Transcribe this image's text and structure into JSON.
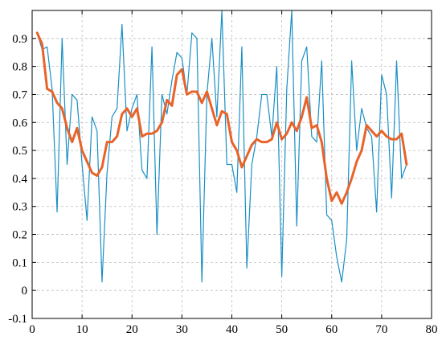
{
  "chart_data": {
    "type": "line",
    "title": "",
    "xlabel": "",
    "ylabel": "",
    "xlim": [
      0,
      80
    ],
    "ylim": [
      -0.1,
      1.0
    ],
    "grid": true,
    "legend": "none",
    "x_ticks": [
      0,
      10,
      20,
      30,
      40,
      50,
      60,
      70,
      80
    ],
    "y_ticks": [
      -0.1,
      0,
      0.1,
      0.2,
      0.3,
      0.4,
      0.5,
      0.6,
      0.7,
      0.8,
      0.9
    ],
    "x_tick_labels": [
      "0",
      "10",
      "20",
      "30",
      "40",
      "50",
      "60",
      "70",
      "80"
    ],
    "y_tick_labels": [
      "-0.1",
      "0",
      "0.1",
      "0.2",
      "0.3",
      "0.4",
      "0.5",
      "0.6",
      "0.7",
      "0.8",
      "0.9"
    ],
    "x": [
      1,
      2,
      3,
      4,
      5,
      6,
      7,
      8,
      9,
      10,
      11,
      12,
      13,
      14,
      15,
      16,
      17,
      18,
      19,
      20,
      21,
      22,
      23,
      24,
      25,
      26,
      27,
      28,
      29,
      30,
      31,
      32,
      33,
      34,
      35,
      36,
      37,
      38,
      39,
      40,
      41,
      42,
      43,
      44,
      45,
      46,
      47,
      48,
      49,
      50,
      51,
      52,
      53,
      54,
      55,
      56,
      57,
      58,
      59,
      60,
      61,
      62,
      63,
      64,
      65,
      66,
      67,
      68,
      69,
      70,
      71,
      72,
      73,
      74,
      75
    ],
    "series": [
      {
        "color": "#1a8fc4",
        "line_width": 1.2,
        "values": [
          0.92,
          0.86,
          0.87,
          0.72,
          0.28,
          0.9,
          0.45,
          0.7,
          0.68,
          0.45,
          0.25,
          0.62,
          0.57,
          0.03,
          0.42,
          0.62,
          0.65,
          0.95,
          0.57,
          0.65,
          0.7,
          0.43,
          0.4,
          0.87,
          0.2,
          0.7,
          0.63,
          0.75,
          0.85,
          0.83,
          0.7,
          0.92,
          0.9,
          0.03,
          0.7,
          0.9,
          0.62,
          1.0,
          0.45,
          0.45,
          0.35,
          0.87,
          0.08,
          0.45,
          0.55,
          0.7,
          0.7,
          0.55,
          0.8,
          0.05,
          0.72,
          1.0,
          0.23,
          0.82,
          0.87,
          0.55,
          0.53,
          0.82,
          0.27,
          0.25,
          0.12,
          0.03,
          0.18,
          0.82,
          0.5,
          0.65,
          0.58,
          0.55,
          0.28,
          0.77,
          0.7,
          0.33,
          0.82,
          0.4,
          0.45
        ]
      },
      {
        "color": "#e8632a",
        "line_width": 3,
        "values": [
          0.92,
          0.88,
          0.72,
          0.71,
          0.67,
          0.65,
          0.58,
          0.53,
          0.58,
          0.5,
          0.46,
          0.42,
          0.41,
          0.44,
          0.53,
          0.53,
          0.55,
          0.63,
          0.65,
          0.62,
          0.65,
          0.55,
          0.56,
          0.56,
          0.57,
          0.6,
          0.68,
          0.66,
          0.77,
          0.79,
          0.7,
          0.71,
          0.71,
          0.67,
          0.71,
          0.65,
          0.59,
          0.64,
          0.63,
          0.53,
          0.5,
          0.44,
          0.48,
          0.52,
          0.54,
          0.53,
          0.53,
          0.54,
          0.6,
          0.54,
          0.56,
          0.6,
          0.57,
          0.62,
          0.69,
          0.58,
          0.59,
          0.53,
          0.4,
          0.32,
          0.35,
          0.31,
          0.35,
          0.4,
          0.46,
          0.5,
          0.59,
          0.57,
          0.55,
          0.57,
          0.55,
          0.54,
          0.54,
          0.56,
          0.45
        ]
      }
    ]
  }
}
